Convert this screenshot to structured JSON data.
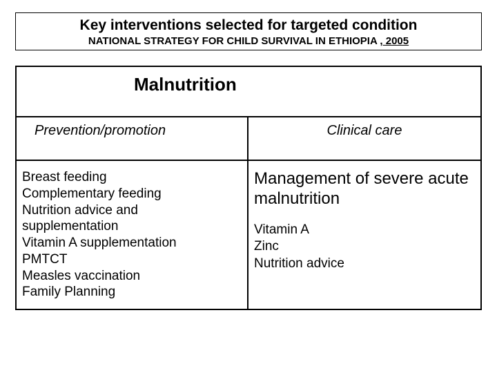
{
  "header": {
    "title": "Key interventions selected for targeted condition",
    "subtitle_main": "NATIONAL STRATEGY FOR CHILD SURVIVAL  IN ETHIOPIA ",
    "subtitle_year": ", 2005"
  },
  "table": {
    "condition": "Malnutrition",
    "columns": {
      "left_header": "Prevention/promotion",
      "right_header": "Clinical care"
    },
    "left_items": [
      "Breast feeding",
      "Complementary feeding",
      "Nutrition advice and supplementation",
      "Vitamin A supplementation",
      "PMTCT",
      "Measles vaccination",
      "Family Planning"
    ],
    "right_heading": "Management of severe acute malnutrition",
    "right_items": [
      "Vitamin A",
      "Zinc",
      "Nutrition advice"
    ]
  },
  "style": {
    "border_color": "#000000",
    "background_color": "#ffffff",
    "text_color": "#000000",
    "title_fontsize": 21,
    "subtitle_fontsize": 15,
    "condition_fontsize": 26,
    "col_header_fontsize": 20,
    "body_fontsize": 19,
    "mgmt_heading_fontsize": 24
  }
}
